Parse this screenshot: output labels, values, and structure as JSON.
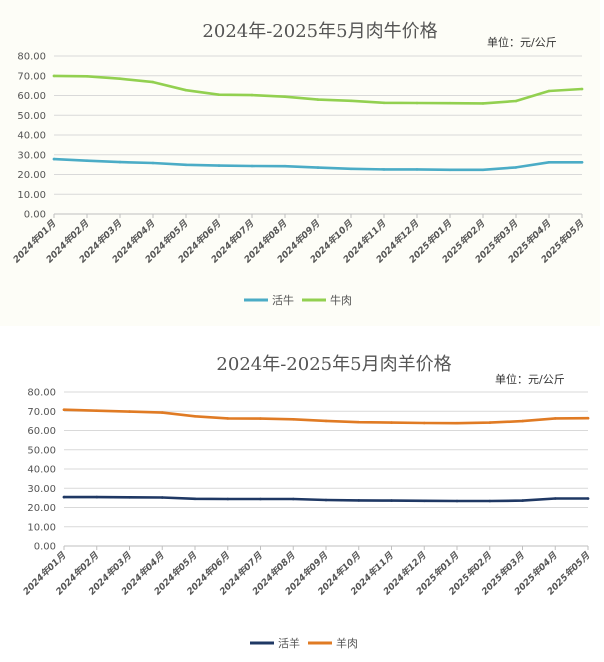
{
  "chart_data": [
    {
      "type": "line",
      "title": "2024年-2025年5月肉牛价格",
      "unit": "单位：元/公斤",
      "ylim": [
        0,
        80
      ],
      "yticks": [
        "0.00",
        "10.00",
        "20.00",
        "30.00",
        "40.00",
        "50.00",
        "60.00",
        "70.00",
        "80.00"
      ],
      "categories": [
        "2024年01月",
        "2024年02月",
        "2024年03月",
        "2024年04月",
        "2024年05月",
        "2024年06月",
        "2024年07月",
        "2024年08月",
        "2024年09月",
        "2024年10月",
        "2024年11月",
        "2024年12月",
        "2025年01月",
        "2025年02月",
        "2025年03月",
        "2025年04月",
        "2025年05月"
      ],
      "series": [
        {
          "name": "活牛",
          "color": "#4bacc6",
          "values": [
            27.8,
            27.0,
            26.3,
            25.8,
            24.9,
            24.5,
            24.3,
            24.2,
            23.5,
            22.9,
            22.6,
            22.6,
            22.4,
            22.4,
            23.6,
            26.2,
            26.2
          ]
        },
        {
          "name": "牛肉",
          "color": "#92d050",
          "values": [
            69.9,
            69.7,
            68.5,
            66.8,
            62.7,
            60.4,
            60.2,
            59.4,
            57.9,
            57.3,
            56.3,
            56.2,
            56.1,
            56.0,
            57.2,
            62.3,
            63.3
          ]
        }
      ]
    },
    {
      "type": "line",
      "title": "2024年-2025年5月肉羊价格",
      "unit": "单位：元/公斤",
      "ylim": [
        0,
        80
      ],
      "yticks": [
        "0.00",
        "10.00",
        "20.00",
        "30.00",
        "40.00",
        "50.00",
        "60.00",
        "70.00",
        "80.00"
      ],
      "categories": [
        "2024年01月",
        "2024年02月",
        "2024年03月",
        "2024年04月",
        "2024年05月",
        "2024年06月",
        "2024年07月",
        "2024年08月",
        "2024年09月",
        "2024年10月",
        "2024年11月",
        "2024年12月",
        "2025年01月",
        "2025年02月",
        "2025年03月",
        "2025年04月",
        "2025年05月"
      ],
      "series": [
        {
          "name": "活羊",
          "color": "#1f3864",
          "values": [
            25.4,
            25.4,
            25.3,
            25.2,
            24.5,
            24.4,
            24.4,
            24.4,
            23.9,
            23.7,
            23.6,
            23.5,
            23.4,
            23.4,
            23.6,
            24.7,
            24.7
          ]
        },
        {
          "name": "羊肉",
          "color": "#e07b24",
          "values": [
            70.8,
            70.3,
            69.8,
            69.3,
            67.4,
            66.3,
            66.2,
            65.8,
            65.0,
            64.3,
            64.1,
            63.9,
            63.8,
            64.1,
            64.9,
            66.3,
            66.4
          ]
        }
      ]
    }
  ]
}
